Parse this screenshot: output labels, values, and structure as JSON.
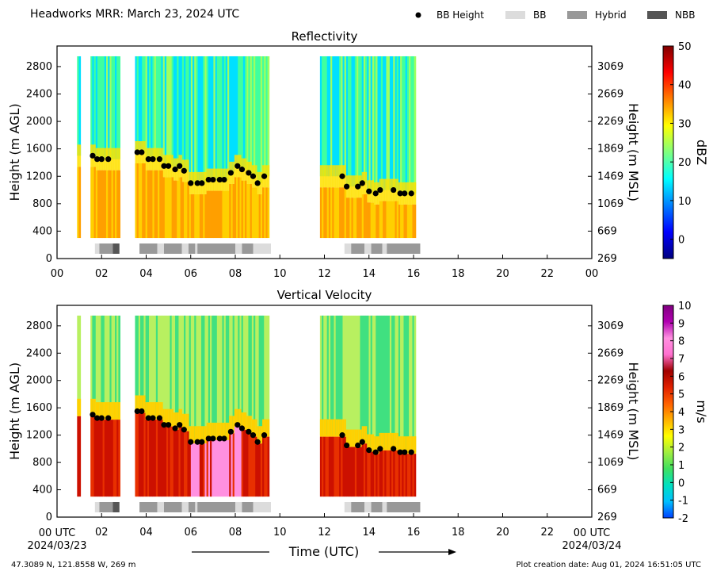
{
  "header": {
    "title": "Headworks MRR:  March 23, 2024 UTC",
    "legend": [
      {
        "label": "BB Height",
        "kind": "dot",
        "color": "#000000"
      },
      {
        "label": "BB",
        "kind": "bar",
        "color": "#dcdcdc"
      },
      {
        "label": "Hybrid",
        "kind": "bar",
        "color": "#999999"
      },
      {
        "label": "NBB",
        "kind": "bar",
        "color": "#555555"
      }
    ]
  },
  "footer": {
    "location": "47.3089 N, 121.8558 W, 269 m",
    "created": "Plot creation date: Aug 01, 2024 16:51:05 UTC",
    "xlabel": "Time (UTC)",
    "start_label": "00 UTC",
    "start_date": "2024/03/23",
    "end_label": "00 UTC",
    "end_date": "2024/03/24"
  },
  "chart_data": [
    {
      "type": "heatmap",
      "title": "Reflectivity",
      "ylabel": "Height (m AGL)",
      "ylabel_right": "Height (m MSL)",
      "colorbar_label": "dBZ",
      "colorbar_range": [
        -5,
        50
      ],
      "colorbar_ticks": [
        "50",
        "40",
        "30",
        "20",
        "10",
        "0"
      ],
      "colorbar_colors": [
        "#00007f",
        "#0000ff",
        "#007fff",
        "#00ffff",
        "#7fff7f",
        "#ffff00",
        "#ff7f00",
        "#ff0000",
        "#7f0000"
      ],
      "xlim": [
        0,
        24
      ],
      "ylim": [
        0,
        3100
      ],
      "x_ticks": [
        "00",
        "02",
        "04",
        "06",
        "08",
        "10",
        "12",
        "14",
        "16",
        "18",
        "20",
        "22",
        "00"
      ],
      "y_ticks": [
        "0",
        "400",
        "800",
        "1200",
        "1600",
        "2000",
        "2400",
        "2800"
      ],
      "y_ticks_right": [
        "269",
        "669",
        "1069",
        "1469",
        "1869",
        "2269",
        "2669",
        "3069"
      ],
      "echo_periods": [
        [
          0.9,
          1.0
        ],
        [
          1.5,
          2.8
        ],
        [
          3.5,
          9.5
        ],
        [
          11.8,
          16.1
        ]
      ],
      "bb_height": [
        [
          1.6,
          1500
        ],
        [
          1.8,
          1450
        ],
        [
          2.0,
          1450
        ],
        [
          2.3,
          1450
        ],
        [
          3.6,
          1550
        ],
        [
          3.8,
          1550
        ],
        [
          4.1,
          1450
        ],
        [
          4.3,
          1450
        ],
        [
          4.6,
          1450
        ],
        [
          4.8,
          1350
        ],
        [
          5.0,
          1350
        ],
        [
          5.3,
          1300
        ],
        [
          5.5,
          1350
        ],
        [
          5.7,
          1280
        ],
        [
          6.0,
          1100
        ],
        [
          6.3,
          1100
        ],
        [
          6.5,
          1100
        ],
        [
          6.8,
          1150
        ],
        [
          7.0,
          1150
        ],
        [
          7.3,
          1150
        ],
        [
          7.5,
          1150
        ],
        [
          7.8,
          1250
        ],
        [
          8.1,
          1350
        ],
        [
          8.3,
          1300
        ],
        [
          8.6,
          1250
        ],
        [
          8.8,
          1200
        ],
        [
          9.0,
          1100
        ],
        [
          9.3,
          1200
        ],
        [
          12.8,
          1200
        ],
        [
          13.0,
          1050
        ],
        [
          13.5,
          1050
        ],
        [
          13.7,
          1100
        ],
        [
          14.0,
          980
        ],
        [
          14.3,
          950
        ],
        [
          14.5,
          1000
        ],
        [
          15.1,
          1000
        ],
        [
          15.4,
          950
        ],
        [
          15.6,
          950
        ],
        [
          15.9,
          950
        ]
      ],
      "bb_type": [
        [
          1.7,
          1.9,
          "BB"
        ],
        [
          1.9,
          2.5,
          "Hybrid"
        ],
        [
          2.5,
          2.8,
          "NBB"
        ],
        [
          3.7,
          4.5,
          "Hybrid"
        ],
        [
          4.5,
          4.8,
          "BB"
        ],
        [
          4.8,
          5.6,
          "Hybrid"
        ],
        [
          5.6,
          5.9,
          "BB"
        ],
        [
          5.9,
          6.2,
          "Hybrid"
        ],
        [
          6.2,
          6.3,
          "BB"
        ],
        [
          6.3,
          8.0,
          "Hybrid"
        ],
        [
          8.0,
          8.3,
          "BB"
        ],
        [
          8.3,
          8.8,
          "Hybrid"
        ],
        [
          8.8,
          9.6,
          "BB"
        ],
        [
          12.9,
          13.2,
          "BB"
        ],
        [
          13.2,
          13.8,
          "Hybrid"
        ],
        [
          13.8,
          14.1,
          "BB"
        ],
        [
          14.1,
          14.6,
          "Hybrid"
        ],
        [
          14.6,
          14.8,
          "BB"
        ],
        [
          14.8,
          16.3,
          "Hybrid"
        ]
      ]
    },
    {
      "type": "heatmap",
      "title": "Vertical Velocity",
      "ylabel": "Height (m AGL)",
      "ylabel_right": "Height (m MSL)",
      "colorbar_label": "m/s",
      "colorbar_range": [
        -2,
        10
      ],
      "colorbar_ticks": [
        "10",
        "9",
        "8",
        "7",
        "6",
        "5",
        "4",
        "3",
        "2",
        "1",
        "0",
        "-1",
        "-2"
      ],
      "colorbar_colors": [
        "#0040ff",
        "#00c0ff",
        "#00e0c0",
        "#40e060",
        "#a0ee40",
        "#ffff00",
        "#ffb000",
        "#ff6000",
        "#e02000",
        "#a00000",
        "#ff70d0",
        "#ff90e0",
        "#b000b0",
        "#800080"
      ],
      "xlim": [
        0,
        24
      ],
      "ylim": [
        0,
        3100
      ],
      "x_ticks": [
        "00 UTC",
        "02",
        "04",
        "06",
        "08",
        "10",
        "12",
        "14",
        "16",
        "18",
        "20",
        "22",
        "00 UTC"
      ],
      "y_ticks": [
        "0",
        "400",
        "800",
        "1200",
        "1600",
        "2000",
        "2400",
        "2800"
      ],
      "y_ticks_right": [
        "269",
        "669",
        "1069",
        "1469",
        "1869",
        "2269",
        "2669",
        "3069"
      ],
      "echo_periods": [
        [
          0.9,
          1.0
        ],
        [
          1.5,
          2.8
        ],
        [
          3.5,
          9.5
        ],
        [
          11.8,
          16.1
        ]
      ],
      "bb_height": [
        [
          1.6,
          1500
        ],
        [
          1.8,
          1450
        ],
        [
          2.0,
          1450
        ],
        [
          2.3,
          1450
        ],
        [
          3.6,
          1550
        ],
        [
          3.8,
          1550
        ],
        [
          4.1,
          1450
        ],
        [
          4.3,
          1450
        ],
        [
          4.6,
          1450
        ],
        [
          4.8,
          1350
        ],
        [
          5.0,
          1350
        ],
        [
          5.3,
          1300
        ],
        [
          5.5,
          1350
        ],
        [
          5.7,
          1280
        ],
        [
          6.0,
          1100
        ],
        [
          6.3,
          1100
        ],
        [
          6.5,
          1100
        ],
        [
          6.8,
          1150
        ],
        [
          7.0,
          1150
        ],
        [
          7.3,
          1150
        ],
        [
          7.5,
          1150
        ],
        [
          7.8,
          1250
        ],
        [
          8.1,
          1350
        ],
        [
          8.3,
          1300
        ],
        [
          8.6,
          1250
        ],
        [
          8.8,
          1200
        ],
        [
          9.0,
          1100
        ],
        [
          9.3,
          1200
        ],
        [
          12.8,
          1200
        ],
        [
          13.0,
          1050
        ],
        [
          13.5,
          1050
        ],
        [
          13.7,
          1100
        ],
        [
          14.0,
          980
        ],
        [
          14.3,
          950
        ],
        [
          14.5,
          1000
        ],
        [
          15.1,
          1000
        ],
        [
          15.4,
          950
        ],
        [
          15.6,
          950
        ],
        [
          15.9,
          950
        ]
      ],
      "bb_type": [
        [
          1.7,
          1.9,
          "BB"
        ],
        [
          1.9,
          2.5,
          "Hybrid"
        ],
        [
          2.5,
          2.8,
          "NBB"
        ],
        [
          3.7,
          4.5,
          "Hybrid"
        ],
        [
          4.5,
          4.8,
          "BB"
        ],
        [
          4.8,
          5.6,
          "Hybrid"
        ],
        [
          5.6,
          5.9,
          "BB"
        ],
        [
          5.9,
          6.2,
          "Hybrid"
        ],
        [
          6.2,
          6.3,
          "BB"
        ],
        [
          6.3,
          8.0,
          "Hybrid"
        ],
        [
          8.0,
          8.3,
          "BB"
        ],
        [
          8.3,
          8.8,
          "Hybrid"
        ],
        [
          8.8,
          9.6,
          "BB"
        ],
        [
          12.9,
          13.2,
          "BB"
        ],
        [
          13.2,
          13.8,
          "Hybrid"
        ],
        [
          13.8,
          14.1,
          "BB"
        ],
        [
          14.1,
          14.6,
          "Hybrid"
        ],
        [
          14.6,
          14.8,
          "BB"
        ],
        [
          14.8,
          16.3,
          "Hybrid"
        ]
      ]
    }
  ]
}
